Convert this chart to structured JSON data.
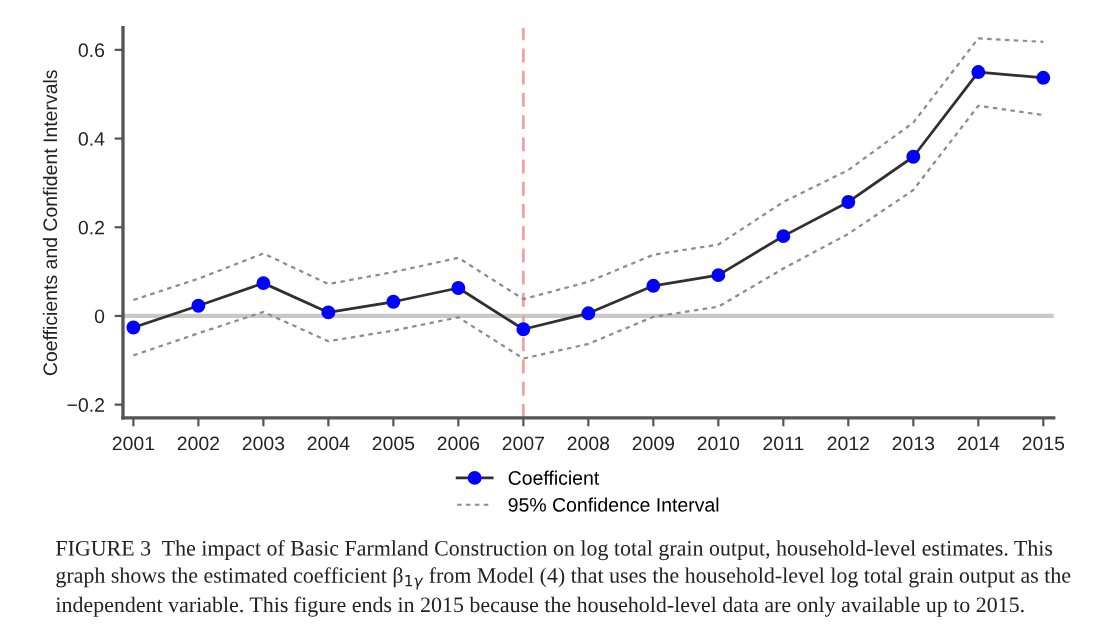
{
  "chart_data": {
    "type": "line",
    "ylabel": "Coefficients and Confident Intervals",
    "x": [
      2001,
      2002,
      2003,
      2004,
      2005,
      2006,
      2007,
      2008,
      2009,
      2010,
      2011,
      2012,
      2013,
      2014,
      2015
    ],
    "series": [
      {
        "name": "Coefficient",
        "color": "#0000ff",
        "marker": "circle",
        "line_style": "solid",
        "values": [
          -0.026,
          0.023,
          0.074,
          0.008,
          0.032,
          0.063,
          -0.03,
          0.006,
          0.068,
          0.092,
          0.18,
          0.257,
          0.359,
          0.55,
          0.537
        ]
      },
      {
        "name": "95% Confidence Interval",
        "color": "#8c8c8c",
        "marker": "none",
        "line_style": "dotted",
        "values": [
          0.036,
          0.084,
          0.141,
          0.072,
          0.099,
          0.131,
          0.038,
          0.077,
          0.138,
          0.161,
          0.257,
          0.329,
          0.436,
          0.626,
          0.618
        ]
      },
      {
        "color": "#8c8c8c",
        "marker": "none",
        "line_style": "dotted",
        "values": [
          -0.089,
          -0.039,
          0.009,
          -0.057,
          -0.033,
          -0.003,
          -0.096,
          -0.063,
          -0.002,
          0.021,
          0.107,
          0.185,
          0.284,
          0.474,
          0.453
        ]
      }
    ],
    "xlim": [
      2000.84,
      2015.16
    ],
    "xticks": [
      2001,
      2002,
      2003,
      2004,
      2005,
      2006,
      2007,
      2008,
      2009,
      2010,
      2011,
      2012,
      2013,
      2014,
      2015
    ],
    "ylim": [
      -0.23,
      0.65
    ],
    "yticks": [
      {
        "value": -0.2,
        "label": "−0.2"
      },
      0,
      0.2,
      0.4,
      0.6
    ],
    "ref_lines": [
      {
        "axis": "y",
        "value": 0,
        "color": "#c8c8c8",
        "line_style": "solid"
      },
      {
        "axis": "x",
        "value": 2007,
        "color": "#f4a0a0",
        "line_style": "dashed"
      }
    ],
    "legend": "bottom",
    "annotations": [
      "FIGURE 3  The impact of Basic Farmland Construction on log total grain output, household-level estimates. This graph shows the estimated coefficient β$_{1γ}$ from Model (4) that uses the household-level log total grain output as the independent variable. This figure ends in 2015 because the household-level data are only available up to 2015."
    ]
  }
}
